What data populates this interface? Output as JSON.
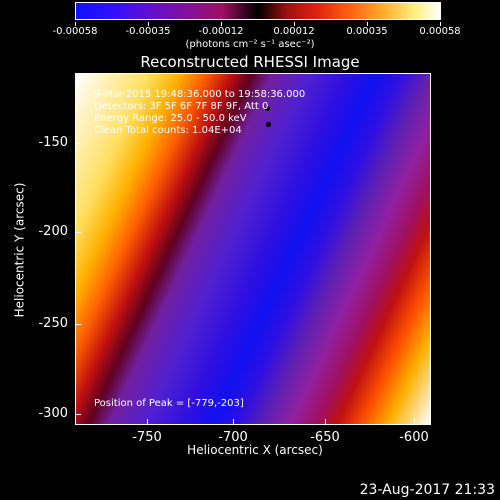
{
  "colorbar": {
    "ticks": [
      "-0.00058",
      "-0.00035",
      "-0.00012",
      "0.00012",
      "0.00035",
      "0.00058"
    ],
    "units": "(photons cm⁻² s⁻¹ asec⁻²)"
  },
  "title": "Reconstructed RHESSI Image",
  "overlay": {
    "time_range": "9-Mar-2015 19:48:36.000 to 19:58:36.000",
    "detectors": "Detectors: 3F 5F 6F 7F 8F 9F, Att 0",
    "energy_range": "Energy Range: 25.0 - 50.0 keV",
    "clean": "Clean      Total counts: 1.04E+04",
    "peak": "Position of Peak = [-779,-203]"
  },
  "axes": {
    "xlabel": "Heliocentric X (arcsec)",
    "ylabel": "Heliocentric Y (arcsec)",
    "xticks": [
      "-750",
      "-700",
      "-650",
      "-600"
    ],
    "yticks": [
      "-150",
      "-200",
      "-250",
      "-300"
    ]
  },
  "timestamp": "23-Aug-2017 21:33"
}
